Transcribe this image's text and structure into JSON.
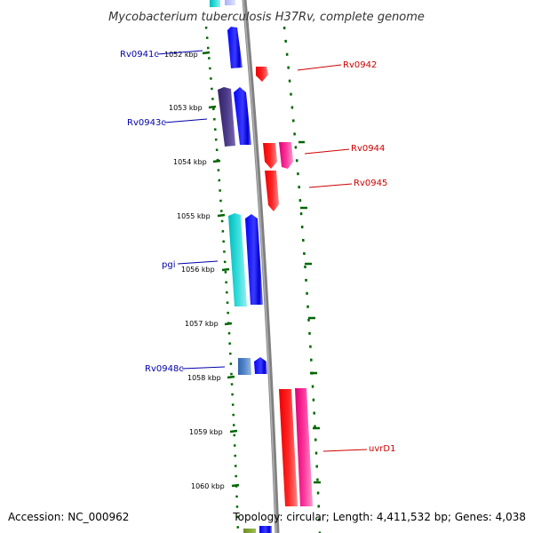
{
  "title": "Mycobacterium tuberculosis H37Rv, complete genome",
  "footer": {
    "accession": "Accession: NC_000962",
    "topology": "Topology: circular; Length: 4,411,532 bp; Genes: 4,038"
  },
  "ticks": [
    "1052 kbp",
    "1053 kbp",
    "1054 kbp",
    "1055 kbp",
    "1056 kbp",
    "1057 kbp",
    "1058 kbp",
    "1059 kbp",
    "1060 kbp"
  ],
  "colors": {
    "reverse_label": "#0000aa",
    "forward_label": "#cc0000",
    "backbone": "#808080",
    "tick_mark": "#006600"
  },
  "gene_labels": [
    {
      "text": "Rv0941c",
      "strand": "reverse"
    },
    {
      "text": "Rv0943c",
      "strand": "reverse"
    },
    {
      "text": "pgi",
      "strand": "reverse"
    },
    {
      "text": "Rv0948c",
      "strand": "reverse"
    },
    {
      "text": "Rv0942",
      "strand": "forward"
    },
    {
      "text": "Rv0944",
      "strand": "forward"
    },
    {
      "text": "Rv0945",
      "strand": "forward"
    },
    {
      "text": "uvrD1",
      "strand": "forward"
    }
  ]
}
